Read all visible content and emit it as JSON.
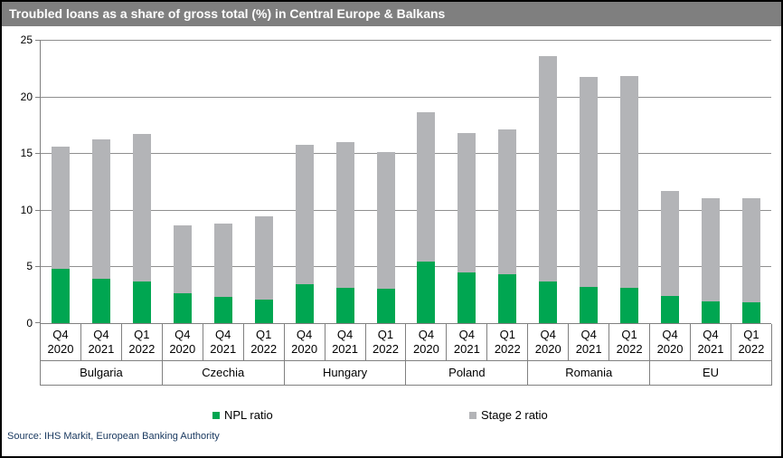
{
  "window": {
    "title": "Troubled loans as a share of gross total (%) in Central Europe & Balkans"
  },
  "source_line": "Source: IHS Markit, European Banking Authority",
  "colors": {
    "title_bar": "#7F7F7F",
    "npl_green": "#00A651",
    "stage2_gray": "#B3B4B7",
    "gridline": "#8F8F8F",
    "axis": "#808080",
    "source_text": "#17375E"
  },
  "chart_data": {
    "type": "bar",
    "stacked": true,
    "title": "Troubled loans as a share of gross total (%) in Central Europe & Balkans",
    "groups": [
      "Bulgaria",
      "Czechia",
      "Hungary",
      "Poland",
      "Romania",
      "EU"
    ],
    "quarters": [
      "Q4 2020",
      "Q4 2021",
      "Q1 2022"
    ],
    "series": [
      {
        "name": "NPL ratio",
        "color": "#00A651",
        "values": [
          4.8,
          3.9,
          3.7,
          2.6,
          2.3,
          2.1,
          3.4,
          3.1,
          3.0,
          5.4,
          4.5,
          4.3,
          3.7,
          3.2,
          3.1,
          2.4,
          1.9,
          1.8
        ]
      },
      {
        "name": "Stage 2 ratio",
        "color": "#B3B4B7",
        "values": [
          10.8,
          12.3,
          13.0,
          6.0,
          6.5,
          7.3,
          12.3,
          12.9,
          12.1,
          13.2,
          12.3,
          12.8,
          19.9,
          18.5,
          18.7,
          9.3,
          9.1,
          9.2
        ]
      }
    ],
    "totals_by_bar": [
      15.6,
      16.2,
      16.7,
      8.6,
      8.8,
      9.4,
      15.7,
      16.0,
      15.1,
      18.6,
      16.8,
      17.1,
      23.6,
      21.7,
      21.8,
      11.7,
      11.0,
      11.0
    ],
    "xlabel": "",
    "ylabel": "",
    "ylim": [
      0,
      25
    ],
    "yticks": [
      0,
      5,
      10,
      15,
      20,
      25
    ],
    "grid": true,
    "legend_position": "bottom"
  }
}
